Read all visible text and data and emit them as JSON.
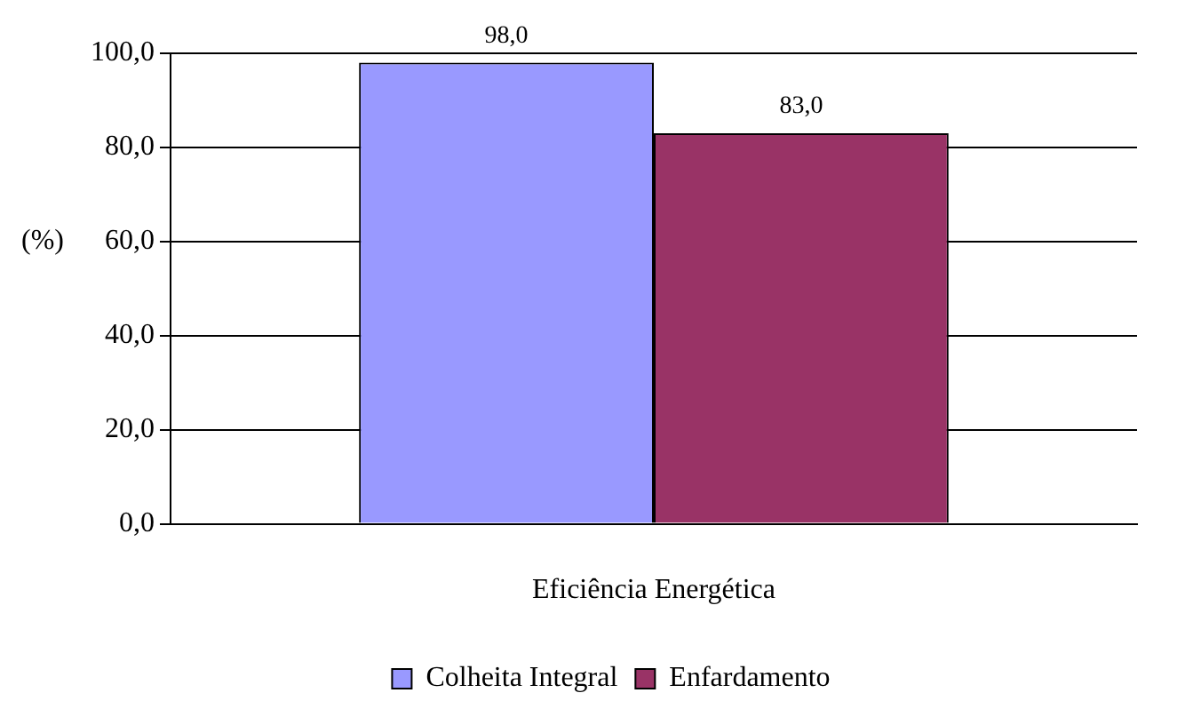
{
  "chart_data": {
    "type": "bar",
    "ylabel": "(%)",
    "categories": [
      "Eficiência Energética"
    ],
    "series": [
      {
        "name": "Colheita Integral",
        "color": "#9999ff",
        "values": [
          98.0
        ],
        "value_labels": [
          "98,0"
        ]
      },
      {
        "name": "Enfardamento",
        "color": "#993366",
        "values": [
          83.0
        ],
        "value_labels": [
          "83,0"
        ]
      }
    ],
    "ylim": [
      0,
      100
    ],
    "yticks": [
      {
        "value": 0,
        "label": "0,0"
      },
      {
        "value": 20,
        "label": "20,0"
      },
      {
        "value": 40,
        "label": "40,0"
      },
      {
        "value": 60,
        "label": "60,0"
      },
      {
        "value": 80,
        "label": "80,0"
      },
      {
        "value": 100,
        "label": "100,0"
      }
    ],
    "grid": "y",
    "legend": "bottom"
  }
}
